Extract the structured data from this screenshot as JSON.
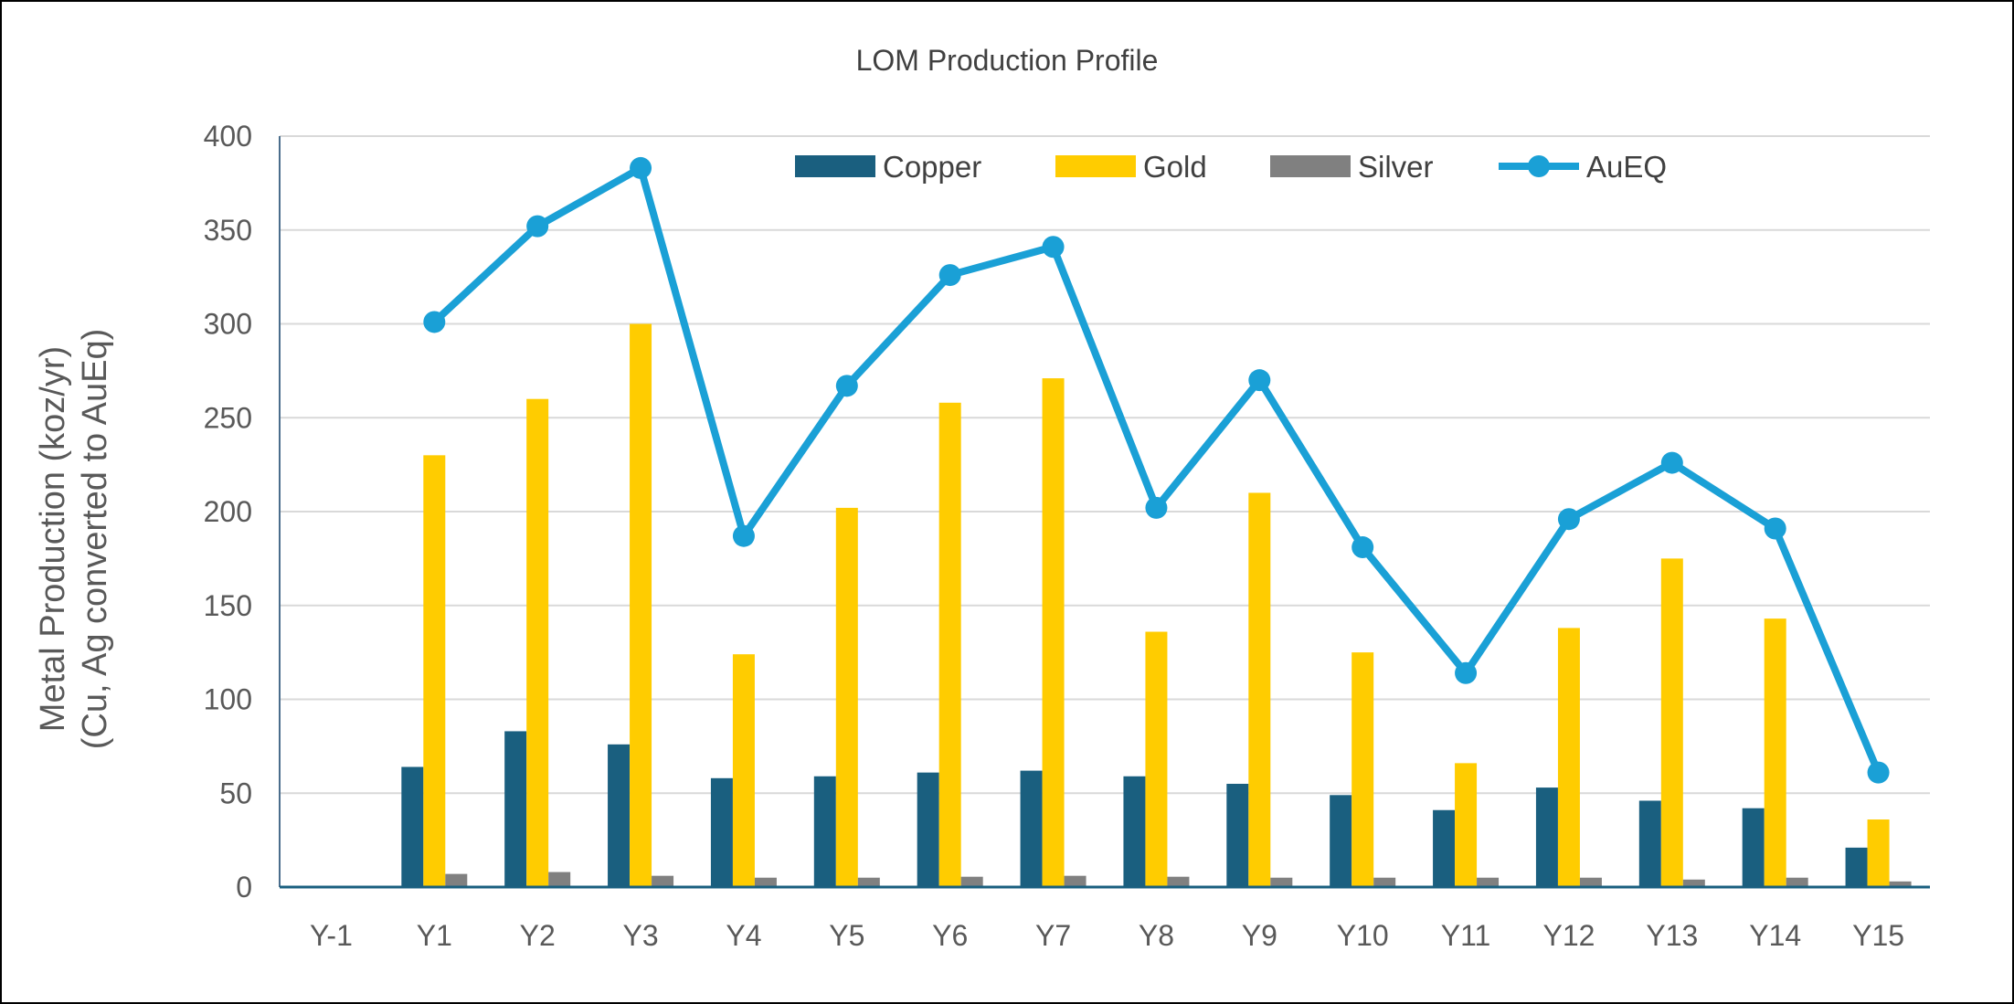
{
  "chart_data": {
    "type": "bar",
    "title": "LOM Production Profile",
    "xlabel": "",
    "ylabel_line1": "Metal Production (koz/yr)",
    "ylabel_line2": "(Cu, Ag converted to AuEq)",
    "ylim": [
      0,
      400
    ],
    "yticks": [
      0,
      50,
      100,
      150,
      200,
      250,
      300,
      350,
      400
    ],
    "grid": true,
    "legend_placement": "top-center",
    "categories": [
      "Y-1",
      "Y1",
      "Y2",
      "Y3",
      "Y4",
      "Y5",
      "Y6",
      "Y7",
      "Y8",
      "Y9",
      "Y10",
      "Y11",
      "Y12",
      "Y13",
      "Y14",
      "Y15"
    ],
    "series": [
      {
        "name": "Copper",
        "kind": "bar",
        "color": "#1a5f7f",
        "values": [
          0,
          64,
          83,
          76,
          58,
          59,
          61,
          62,
          59,
          55,
          49,
          41,
          53,
          46,
          42,
          21
        ]
      },
      {
        "name": "Gold",
        "kind": "bar",
        "color": "#ffcc00",
        "values": [
          0,
          230,
          260,
          300,
          124,
          202,
          258,
          271,
          136,
          210,
          125,
          66,
          138,
          175,
          143,
          36
        ]
      },
      {
        "name": "Silver",
        "kind": "bar",
        "color": "#808080",
        "values": [
          0,
          7,
          8,
          6,
          5,
          5,
          5.5,
          6,
          5.5,
          5,
          5,
          5,
          5,
          4,
          5,
          3
        ]
      },
      {
        "name": "AuEQ",
        "kind": "line",
        "color": "#1aa0d6",
        "values": [
          null,
          301,
          352,
          383,
          187,
          267,
          326,
          341,
          202,
          270,
          181,
          114,
          196,
          226,
          191,
          61
        ]
      }
    ]
  }
}
